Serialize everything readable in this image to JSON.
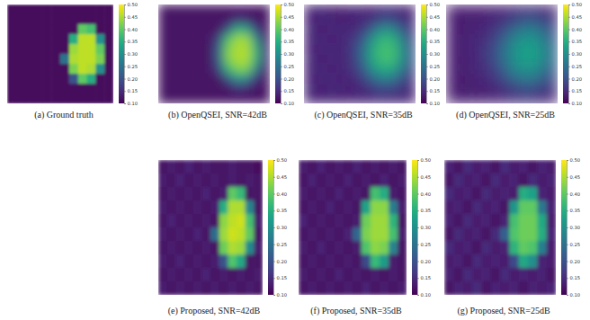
{
  "chart_data": [
    {
      "type": "heatmap",
      "title": "(a) Ground truth",
      "tick_labels": false,
      "zlim": [
        0.1,
        0.5
      ],
      "zticks": [
        {
          "value": 0.1,
          "label": "0.10"
        },
        0.15,
        {
          "value": 0.2,
          "label": "0.20"
        },
        0.25,
        {
          "value": 0.3,
          "label": "0.30"
        },
        0.35,
        {
          "value": 0.4,
          "label": "0.40"
        },
        0.45,
        {
          "value": 0.5,
          "label": "0.50"
        }
      ],
      "cells": [
        [
          0.11,
          0.11,
          0.11,
          0.11,
          0.11,
          0.11,
          0.11,
          0.11,
          0.11,
          0.11,
          0.11,
          0.11
        ],
        [
          0.11,
          0.11,
          0.11,
          0.11,
          0.11,
          0.11,
          0.11,
          0.11,
          0.11,
          0.11,
          0.11,
          0.11
        ],
        [
          0.11,
          0.11,
          0.11,
          0.11,
          0.11,
          0.11,
          0.11,
          0.11,
          0.4,
          0.38,
          0.11,
          0.11
        ],
        [
          0.11,
          0.11,
          0.11,
          0.11,
          0.11,
          0.11,
          0.11,
          0.35,
          0.46,
          0.46,
          0.3,
          0.11
        ],
        [
          0.11,
          0.11,
          0.11,
          0.11,
          0.11,
          0.11,
          0.11,
          0.44,
          0.46,
          0.46,
          0.4,
          0.11
        ],
        [
          0.11,
          0.11,
          0.11,
          0.11,
          0.11,
          0.11,
          0.25,
          0.45,
          0.46,
          0.46,
          0.42,
          0.11
        ],
        [
          0.11,
          0.11,
          0.11,
          0.11,
          0.11,
          0.11,
          0.11,
          0.42,
          0.46,
          0.45,
          0.3,
          0.11
        ],
        [
          0.11,
          0.11,
          0.11,
          0.11,
          0.11,
          0.11,
          0.11,
          0.2,
          0.4,
          0.35,
          0.11,
          0.11
        ],
        [
          0.11,
          0.11,
          0.11,
          0.11,
          0.11,
          0.11,
          0.11,
          0.11,
          0.11,
          0.11,
          0.11,
          0.11
        ],
        [
          0.11,
          0.11,
          0.11,
          0.11,
          0.11,
          0.11,
          0.11,
          0.11,
          0.11,
          0.11,
          0.11,
          0.11
        ]
      ]
    },
    {
      "type": "heatmap",
      "title": "(b) OpenQSEI, SNR=42dB",
      "tick_labels": false,
      "zlim": [
        0.1,
        0.5
      ],
      "zticks": [
        {
          "value": 0.1,
          "label": "0.10"
        },
        0.15,
        {
          "value": 0.2,
          "label": "0.20"
        },
        0.25,
        {
          "value": 0.3,
          "label": "0.30"
        },
        0.35,
        {
          "value": 0.4,
          "label": "0.40"
        },
        0.45,
        {
          "value": 0.5,
          "label": "0.50"
        }
      ],
      "cells": [
        [
          0.12,
          0.12,
          0.12,
          0.12,
          0.12,
          0.12,
          0.12,
          0.12,
          0.12,
          0.12,
          0.12,
          0.12
        ],
        [
          0.12,
          0.12,
          0.12,
          0.12,
          0.12,
          0.12,
          0.12,
          0.12,
          0.15,
          0.14,
          0.12,
          0.12
        ],
        [
          0.12,
          0.12,
          0.12,
          0.12,
          0.12,
          0.12,
          0.12,
          0.2,
          0.35,
          0.33,
          0.18,
          0.12
        ],
        [
          0.12,
          0.12,
          0.12,
          0.12,
          0.12,
          0.12,
          0.18,
          0.38,
          0.44,
          0.44,
          0.3,
          0.13
        ],
        [
          0.12,
          0.12,
          0.12,
          0.12,
          0.12,
          0.12,
          0.22,
          0.42,
          0.45,
          0.45,
          0.36,
          0.15
        ],
        [
          0.12,
          0.12,
          0.12,
          0.12,
          0.12,
          0.12,
          0.22,
          0.42,
          0.45,
          0.45,
          0.36,
          0.15
        ],
        [
          0.12,
          0.12,
          0.12,
          0.12,
          0.12,
          0.12,
          0.18,
          0.36,
          0.42,
          0.42,
          0.28,
          0.13
        ],
        [
          0.12,
          0.12,
          0.12,
          0.12,
          0.12,
          0.12,
          0.12,
          0.2,
          0.3,
          0.28,
          0.16,
          0.12
        ],
        [
          0.12,
          0.12,
          0.12,
          0.12,
          0.12,
          0.12,
          0.12,
          0.12,
          0.15,
          0.14,
          0.12,
          0.12
        ],
        [
          0.12,
          0.12,
          0.12,
          0.12,
          0.12,
          0.12,
          0.12,
          0.12,
          0.12,
          0.12,
          0.12,
          0.12
        ]
      ]
    },
    {
      "type": "heatmap",
      "title": "(c) OpenQSEI, SNR=35dB",
      "tick_labels": false,
      "zlim": [
        0.1,
        0.5
      ],
      "zticks": [
        {
          "value": 0.1,
          "label": "0.10"
        },
        0.15,
        {
          "value": 0.2,
          "label": "0.20"
        },
        0.25,
        {
          "value": 0.3,
          "label": "0.30"
        },
        0.35,
        {
          "value": 0.4,
          "label": "0.40"
        },
        0.45,
        {
          "value": 0.5,
          "label": "0.50"
        }
      ],
      "cells": [
        [
          0.14,
          0.15,
          0.14,
          0.13,
          0.14,
          0.15,
          0.14,
          0.14,
          0.15,
          0.15,
          0.14,
          0.14
        ],
        [
          0.14,
          0.14,
          0.15,
          0.14,
          0.14,
          0.14,
          0.15,
          0.16,
          0.19,
          0.18,
          0.16,
          0.15
        ],
        [
          0.15,
          0.14,
          0.14,
          0.15,
          0.14,
          0.15,
          0.17,
          0.23,
          0.3,
          0.29,
          0.21,
          0.16
        ],
        [
          0.14,
          0.15,
          0.14,
          0.14,
          0.15,
          0.17,
          0.22,
          0.32,
          0.37,
          0.36,
          0.28,
          0.18
        ],
        [
          0.14,
          0.14,
          0.15,
          0.14,
          0.15,
          0.18,
          0.25,
          0.35,
          0.38,
          0.38,
          0.31,
          0.2
        ],
        [
          0.15,
          0.14,
          0.14,
          0.15,
          0.14,
          0.18,
          0.25,
          0.35,
          0.38,
          0.38,
          0.31,
          0.2
        ],
        [
          0.14,
          0.15,
          0.14,
          0.14,
          0.15,
          0.17,
          0.22,
          0.31,
          0.35,
          0.34,
          0.27,
          0.18
        ],
        [
          0.14,
          0.14,
          0.15,
          0.14,
          0.14,
          0.15,
          0.18,
          0.23,
          0.27,
          0.26,
          0.2,
          0.16
        ],
        [
          0.15,
          0.14,
          0.14,
          0.15,
          0.14,
          0.14,
          0.15,
          0.17,
          0.19,
          0.18,
          0.16,
          0.15
        ],
        [
          0.14,
          0.14,
          0.15,
          0.14,
          0.14,
          0.15,
          0.14,
          0.15,
          0.15,
          0.14,
          0.15,
          0.14
        ]
      ]
    },
    {
      "type": "heatmap",
      "title": "(d) OpenQSEI, SNR=25dB",
      "tick_labels": false,
      "zlim": [
        0.1,
        0.5
      ],
      "zticks": [
        {
          "value": 0.1,
          "label": "0.10"
        },
        0.15,
        {
          "value": 0.2,
          "label": "0.20"
        },
        0.25,
        {
          "value": 0.3,
          "label": "0.30"
        },
        0.35,
        {
          "value": 0.4,
          "label": "0.40"
        },
        0.45,
        {
          "value": 0.5,
          "label": "0.50"
        }
      ],
      "cells": [
        [
          0.13,
          0.14,
          0.13,
          0.13,
          0.14,
          0.14,
          0.14,
          0.15,
          0.15,
          0.15,
          0.14,
          0.14
        ],
        [
          0.13,
          0.13,
          0.14,
          0.14,
          0.14,
          0.15,
          0.16,
          0.18,
          0.2,
          0.2,
          0.18,
          0.16
        ],
        [
          0.14,
          0.13,
          0.14,
          0.14,
          0.15,
          0.17,
          0.2,
          0.24,
          0.27,
          0.27,
          0.23,
          0.19
        ],
        [
          0.13,
          0.14,
          0.14,
          0.15,
          0.16,
          0.19,
          0.24,
          0.29,
          0.31,
          0.31,
          0.27,
          0.21
        ],
        [
          0.13,
          0.14,
          0.14,
          0.15,
          0.17,
          0.21,
          0.26,
          0.31,
          0.33,
          0.33,
          0.29,
          0.23
        ],
        [
          0.14,
          0.13,
          0.14,
          0.15,
          0.17,
          0.21,
          0.26,
          0.31,
          0.33,
          0.33,
          0.29,
          0.23
        ],
        [
          0.13,
          0.14,
          0.14,
          0.15,
          0.16,
          0.19,
          0.24,
          0.29,
          0.31,
          0.3,
          0.26,
          0.21
        ],
        [
          0.13,
          0.13,
          0.14,
          0.14,
          0.15,
          0.17,
          0.2,
          0.24,
          0.26,
          0.26,
          0.22,
          0.18
        ],
        [
          0.13,
          0.14,
          0.13,
          0.14,
          0.14,
          0.15,
          0.16,
          0.18,
          0.2,
          0.19,
          0.17,
          0.16
        ],
        [
          0.13,
          0.13,
          0.14,
          0.13,
          0.14,
          0.14,
          0.15,
          0.15,
          0.16,
          0.15,
          0.15,
          0.14
        ]
      ]
    },
    {
      "type": "heatmap",
      "title": "(e) Proposed, SNR=42dB",
      "tick_labels": false,
      "zlim": [
        0.1,
        0.5
      ],
      "zticks": [
        {
          "value": 0.1,
          "label": "0.10"
        },
        0.15,
        {
          "value": 0.2,
          "label": "0.20"
        },
        0.25,
        {
          "value": 0.3,
          "label": "0.30"
        },
        0.35,
        {
          "value": 0.4,
          "label": "0.40"
        },
        0.45,
        {
          "value": 0.5,
          "label": "0.50"
        }
      ],
      "cells": [
        [
          0.12,
          0.13,
          0.12,
          0.14,
          0.12,
          0.13,
          0.12,
          0.12,
          0.13,
          0.12,
          0.12,
          0.11
        ],
        [
          0.13,
          0.12,
          0.14,
          0.12,
          0.13,
          0.12,
          0.13,
          0.12,
          0.13,
          0.12,
          0.13,
          0.12
        ],
        [
          0.12,
          0.13,
          0.12,
          0.13,
          0.12,
          0.14,
          0.12,
          0.13,
          0.4,
          0.37,
          0.12,
          0.12
        ],
        [
          0.13,
          0.12,
          0.13,
          0.12,
          0.13,
          0.12,
          0.13,
          0.35,
          0.45,
          0.45,
          0.28,
          0.12
        ],
        [
          0.12,
          0.14,
          0.12,
          0.13,
          0.12,
          0.13,
          0.12,
          0.43,
          0.46,
          0.47,
          0.38,
          0.13
        ],
        [
          0.13,
          0.12,
          0.13,
          0.12,
          0.14,
          0.12,
          0.24,
          0.44,
          0.47,
          0.46,
          0.4,
          0.12
        ],
        [
          0.12,
          0.13,
          0.12,
          0.13,
          0.12,
          0.13,
          0.12,
          0.41,
          0.45,
          0.44,
          0.29,
          0.13
        ],
        [
          0.13,
          0.12,
          0.14,
          0.12,
          0.13,
          0.12,
          0.13,
          0.2,
          0.39,
          0.34,
          0.12,
          0.12
        ],
        [
          0.12,
          0.13,
          0.12,
          0.13,
          0.12,
          0.14,
          0.12,
          0.13,
          0.12,
          0.13,
          0.12,
          0.13
        ],
        [
          0.13,
          0.12,
          0.13,
          0.12,
          0.13,
          0.12,
          0.13,
          0.12,
          0.13,
          0.12,
          0.13,
          0.12
        ]
      ]
    },
    {
      "type": "heatmap",
      "title": "(f) Proposed, SNR=35dB",
      "tick_labels": false,
      "zlim": [
        0.1,
        0.5
      ],
      "zticks": [
        {
          "value": 0.1,
          "label": "0.10"
        },
        0.15,
        {
          "value": 0.2,
          "label": "0.20"
        },
        0.25,
        {
          "value": 0.3,
          "label": "0.30"
        },
        0.35,
        {
          "value": 0.4,
          "label": "0.40"
        },
        0.45,
        {
          "value": 0.5,
          "label": "0.50"
        }
      ],
      "cells": [
        [
          0.13,
          0.12,
          0.14,
          0.12,
          0.13,
          0.12,
          0.14,
          0.12,
          0.13,
          0.12,
          0.13,
          0.12
        ],
        [
          0.12,
          0.14,
          0.12,
          0.13,
          0.12,
          0.14,
          0.12,
          0.13,
          0.12,
          0.14,
          0.12,
          0.13
        ],
        [
          0.13,
          0.12,
          0.13,
          0.12,
          0.14,
          0.12,
          0.13,
          0.12,
          0.38,
          0.35,
          0.13,
          0.12
        ],
        [
          0.12,
          0.13,
          0.12,
          0.14,
          0.12,
          0.13,
          0.12,
          0.33,
          0.43,
          0.43,
          0.27,
          0.13
        ],
        [
          0.14,
          0.12,
          0.13,
          0.12,
          0.13,
          0.12,
          0.13,
          0.41,
          0.44,
          0.44,
          0.36,
          0.12
        ],
        [
          0.12,
          0.13,
          0.12,
          0.13,
          0.12,
          0.14,
          0.23,
          0.42,
          0.44,
          0.44,
          0.38,
          0.13
        ],
        [
          0.13,
          0.12,
          0.14,
          0.12,
          0.13,
          0.12,
          0.13,
          0.39,
          0.43,
          0.42,
          0.28,
          0.12
        ],
        [
          0.12,
          0.13,
          0.12,
          0.13,
          0.12,
          0.13,
          0.12,
          0.19,
          0.37,
          0.32,
          0.13,
          0.12
        ],
        [
          0.13,
          0.12,
          0.13,
          0.12,
          0.14,
          0.12,
          0.13,
          0.12,
          0.13,
          0.12,
          0.13,
          0.12
        ],
        [
          0.12,
          0.13,
          0.12,
          0.13,
          0.12,
          0.13,
          0.12,
          0.14,
          0.12,
          0.13,
          0.12,
          0.13
        ]
      ]
    },
    {
      "type": "heatmap",
      "title": "(g) Proposed, SNR=25dB",
      "tick_labels": false,
      "zlim": [
        0.1,
        0.5
      ],
      "zticks": [
        {
          "value": 0.1,
          "label": "0.10"
        },
        0.15,
        {
          "value": 0.2,
          "label": "0.20"
        },
        0.25,
        {
          "value": 0.3,
          "label": "0.30"
        },
        0.35,
        {
          "value": 0.4,
          "label": "0.40"
        },
        0.45,
        {
          "value": 0.5,
          "label": "0.50"
        }
      ],
      "cells": [
        [
          0.14,
          0.12,
          0.15,
          0.13,
          0.14,
          0.12,
          0.15,
          0.13,
          0.14,
          0.12,
          0.14,
          0.13
        ],
        [
          0.12,
          0.15,
          0.13,
          0.14,
          0.12,
          0.15,
          0.13,
          0.14,
          0.12,
          0.15,
          0.13,
          0.14
        ],
        [
          0.15,
          0.13,
          0.14,
          0.12,
          0.15,
          0.13,
          0.14,
          0.13,
          0.35,
          0.33,
          0.14,
          0.13
        ],
        [
          0.13,
          0.14,
          0.12,
          0.15,
          0.13,
          0.14,
          0.12,
          0.31,
          0.4,
          0.4,
          0.26,
          0.14
        ],
        [
          0.14,
          0.12,
          0.15,
          0.13,
          0.14,
          0.12,
          0.14,
          0.38,
          0.41,
          0.41,
          0.34,
          0.13
        ],
        [
          0.12,
          0.15,
          0.13,
          0.14,
          0.12,
          0.15,
          0.22,
          0.39,
          0.41,
          0.41,
          0.35,
          0.14
        ],
        [
          0.15,
          0.13,
          0.14,
          0.12,
          0.15,
          0.13,
          0.14,
          0.36,
          0.4,
          0.39,
          0.27,
          0.13
        ],
        [
          0.13,
          0.14,
          0.12,
          0.15,
          0.13,
          0.14,
          0.13,
          0.19,
          0.34,
          0.3,
          0.14,
          0.13
        ],
        [
          0.14,
          0.12,
          0.15,
          0.13,
          0.14,
          0.12,
          0.15,
          0.13,
          0.14,
          0.13,
          0.14,
          0.12
        ],
        [
          0.12,
          0.14,
          0.13,
          0.15,
          0.12,
          0.14,
          0.13,
          0.14,
          0.12,
          0.14,
          0.13,
          0.14
        ]
      ]
    }
  ]
}
